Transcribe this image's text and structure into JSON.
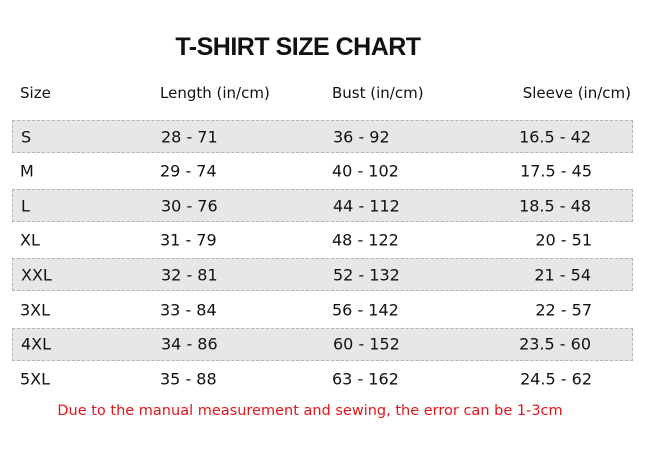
{
  "title": "T-SHIRT SIZE CHART",
  "headers": [
    "Size",
    "Length (in/cm)",
    "Bust (in/cm)",
    "Sleeve (in/cm)"
  ],
  "rows": [
    [
      "S",
      "28 - 71",
      "36 - 92",
      "16.5 - 42"
    ],
    [
      "M",
      "29 - 74",
      "40 - 102",
      "17.5 - 45"
    ],
    [
      "L",
      "30 - 76",
      "44 - 112",
      "18.5 - 48"
    ],
    [
      "XL",
      "31 - 79",
      "48 - 122",
      "20 - 51"
    ],
    [
      "XXL",
      "32 - 81",
      "52 - 132",
      "21 - 54"
    ],
    [
      "3XL",
      "33 - 84",
      "56 - 142",
      "22 - 57"
    ],
    [
      "4XL",
      "34 - 86",
      "60 - 152",
      "23.5 - 60"
    ],
    [
      "5XL",
      "35 - 88",
      "63 - 162",
      "24.5 - 62"
    ]
  ],
  "note": "Due to the manual measurement and sewing, the error can be 1-3cm",
  "colors": {
    "note": "#e4141b",
    "shaded_row": "#e6e7e9"
  }
}
